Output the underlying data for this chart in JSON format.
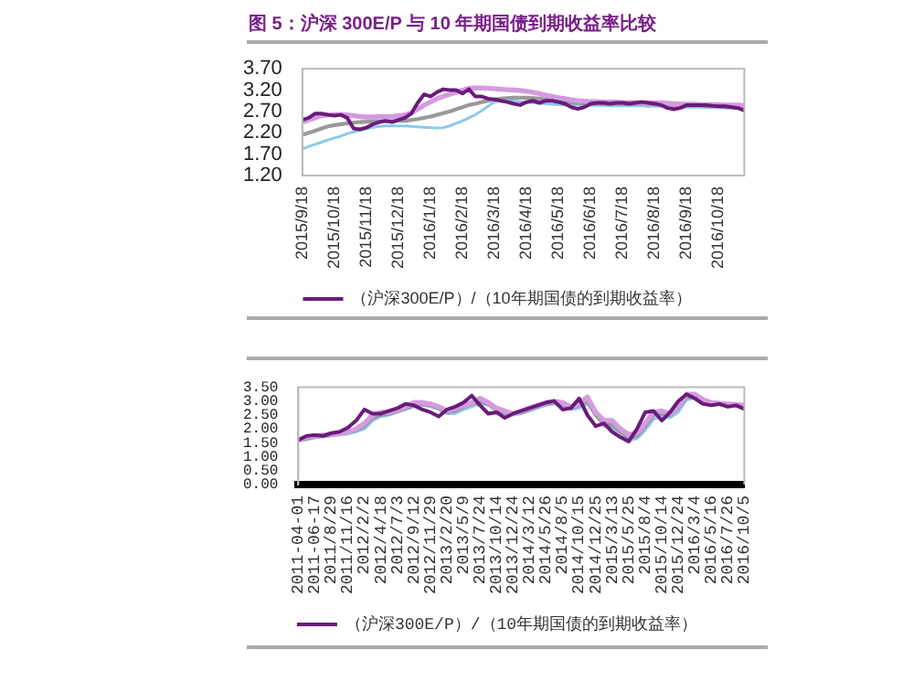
{
  "chart_data": [
    {
      "type": "line",
      "title": "图 5：沪深 300E/P 与 10 年期国债到期收益率比较",
      "categories": [
        "2015/9/18",
        null,
        null,
        null,
        null,
        "2015/10/18",
        null,
        null,
        null,
        null,
        "2015/11/18",
        null,
        null,
        null,
        null,
        "2015/12/18",
        null,
        null,
        null,
        null,
        "2016/1/18",
        null,
        null,
        null,
        null,
        "2016/2/18",
        null,
        null,
        null,
        null,
        "2016/3/18",
        null,
        null,
        null,
        null,
        "2016/4/18",
        null,
        null,
        null,
        null,
        "2016/5/18",
        null,
        null,
        null,
        null,
        "2016/6/18",
        null,
        null,
        null,
        null,
        "2016/7/18",
        null,
        null,
        null,
        null,
        "2016/8/18",
        null,
        null,
        null,
        null,
        "2016/9/18",
        null,
        null,
        null,
        null,
        "2016/10/18",
        null,
        null,
        null,
        null
      ],
      "ylim": [
        1.2,
        3.7
      ],
      "yticks": [
        {
          "value": 1.2,
          "label": "1.20"
        },
        {
          "value": 1.7,
          "label": "1.70"
        },
        {
          "value": 2.2,
          "label": "2.20"
        },
        {
          "value": 2.7,
          "label": "2.70"
        },
        {
          "value": 3.2,
          "label": "3.20"
        },
        {
          "value": 3.7,
          "label": "3.70"
        }
      ],
      "grid": false,
      "legend": "bottom",
      "marker": "none",
      "line_style": "solid",
      "series": [
        {
          "color": "#d49be0",
          "values": [
            2.45,
            2.5,
            2.55,
            2.6,
            2.62,
            2.63,
            2.63,
            2.62,
            2.6,
            2.58,
            2.57,
            2.57,
            2.58,
            2.58,
            2.58,
            2.6,
            2.62,
            2.66,
            2.75,
            2.85,
            2.92,
            3.0,
            3.05,
            3.1,
            3.15,
            3.2,
            3.24,
            3.25,
            3.25,
            3.24,
            3.23,
            3.22,
            3.21,
            3.2,
            3.19,
            3.17,
            3.15,
            3.12,
            3.08,
            3.05,
            3.02,
            3.0,
            2.97,
            2.95,
            2.94,
            2.93,
            2.93,
            2.92,
            2.92,
            2.92,
            2.91,
            2.91,
            2.91,
            2.91,
            2.9,
            2.9,
            2.9,
            2.89,
            2.88,
            2.87,
            2.87,
            2.87,
            2.86,
            2.86,
            2.86,
            2.86,
            2.85,
            2.85,
            2.85,
            2.84
          ]
        },
        {
          "color": "#999999",
          "values": [
            2.15,
            2.2,
            2.25,
            2.3,
            2.35,
            2.38,
            2.4,
            2.42,
            2.44,
            2.45,
            2.46,
            2.47,
            2.47,
            2.47,
            2.47,
            2.48,
            2.48,
            2.5,
            2.52,
            2.55,
            2.58,
            2.62,
            2.66,
            2.7,
            2.75,
            2.8,
            2.85,
            2.88,
            2.92,
            2.95,
            2.98,
            3.0,
            3.01,
            3.02,
            3.02,
            3.02,
            3.01,
            3.0,
            2.98,
            2.96,
            2.94,
            2.92,
            2.91,
            2.9,
            2.89,
            2.89,
            2.88,
            2.88,
            2.88,
            2.88,
            2.88,
            2.88,
            2.88,
            2.88,
            2.88,
            2.87,
            2.86,
            2.86,
            2.85,
            2.85,
            2.84,
            2.84,
            2.84,
            2.83,
            2.83,
            2.83,
            2.82,
            2.82,
            2.82,
            2.82
          ]
        },
        {
          "color": "#8ec8ee",
          "values": [
            1.82,
            1.88,
            1.93,
            1.98,
            2.03,
            2.08,
            2.12,
            2.18,
            2.22,
            2.26,
            2.3,
            2.33,
            2.35,
            2.36,
            2.36,
            2.36,
            2.36,
            2.35,
            2.34,
            2.33,
            2.32,
            2.31,
            2.32,
            2.36,
            2.42,
            2.48,
            2.55,
            2.62,
            2.72,
            2.82,
            2.92,
            2.95,
            2.96,
            2.95,
            2.93,
            2.91,
            2.9,
            2.89,
            2.88,
            2.87,
            2.86,
            2.85,
            2.85,
            2.85,
            2.84,
            2.84,
            2.84,
            2.84,
            2.83,
            2.83,
            2.83,
            2.83,
            2.83,
            2.83,
            2.82,
            2.82,
            2.82,
            2.81,
            2.81,
            2.8,
            2.8,
            2.8,
            2.8,
            2.79,
            2.79,
            2.79,
            2.78,
            2.78,
            2.78,
            2.78
          ]
        },
        {
          "name": "（沪深300E/P）/（10年期国债的到期收益率）",
          "color": "#6a1b7a",
          "values": [
            2.5,
            2.55,
            2.65,
            2.65,
            2.62,
            2.6,
            2.62,
            2.55,
            2.3,
            2.28,
            2.32,
            2.4,
            2.45,
            2.48,
            2.45,
            2.5,
            2.55,
            2.65,
            2.9,
            3.1,
            3.05,
            3.15,
            3.22,
            3.2,
            3.2,
            3.12,
            3.22,
            3.05,
            3.05,
            3.0,
            2.98,
            2.95,
            2.92,
            2.88,
            2.85,
            2.92,
            2.95,
            2.9,
            2.95,
            2.95,
            2.92,
            2.88,
            2.8,
            2.76,
            2.8,
            2.88,
            2.9,
            2.9,
            2.88,
            2.9,
            2.9,
            2.88,
            2.9,
            2.92,
            2.9,
            2.88,
            2.85,
            2.78,
            2.75,
            2.78,
            2.85,
            2.85,
            2.85,
            2.85,
            2.83,
            2.82,
            2.82,
            2.8,
            2.78,
            2.72
          ]
        }
      ]
    },
    {
      "type": "line",
      "categories": [
        "2011-04-01",
        null,
        "2011-06-17",
        null,
        "2011/8/29",
        null,
        "2011/11/16",
        null,
        "2012/2/2",
        null,
        "2012/4/18",
        null,
        "2012/7/3",
        null,
        "2012/9/12",
        null,
        "2012/11/29",
        null,
        "2013/2/20",
        null,
        "2013/5/9",
        null,
        "2013/7/24",
        null,
        "2013/10/14",
        null,
        "2013/12/24",
        null,
        "2014/3/12",
        null,
        "2014/5/26",
        null,
        "2014/8/5",
        null,
        "2014/10/15",
        null,
        "2014/12/25",
        null,
        "2015/3/13",
        null,
        "2015/5/25",
        null,
        "2015/8/4",
        null,
        "2015/10/14",
        null,
        "2015/12/24",
        null,
        "2016/3/4",
        null,
        "2016/5/16",
        null,
        "2016/7/26",
        null,
        "2016/10/5"
      ],
      "ylim": [
        0,
        3.5
      ],
      "yticks": [
        {
          "value": 0,
          "label": "0.00"
        },
        {
          "value": 0.5,
          "label": "0.50"
        },
        {
          "value": 1,
          "label": "1.00"
        },
        {
          "value": 1.5,
          "label": "1.50"
        },
        {
          "value": 2,
          "label": "2.00"
        },
        {
          "value": 2.5,
          "label": "2.50"
        },
        {
          "value": 3,
          "label": "3.00"
        },
        {
          "value": 3.5,
          "label": "3.50"
        }
      ],
      "grid": false,
      "legend": "bottom",
      "marker": "none",
      "line_style": "solid",
      "series": [
        {
          "color": "#d49be0",
          "values": [
            1.6,
            1.7,
            1.75,
            1.78,
            1.8,
            1.85,
            1.9,
            2.0,
            2.2,
            2.5,
            2.6,
            2.6,
            2.7,
            2.8,
            2.95,
            2.95,
            2.9,
            2.8,
            2.65,
            2.75,
            2.85,
            2.95,
            3.1,
            2.95,
            2.75,
            2.65,
            2.55,
            2.65,
            2.75,
            2.85,
            2.95,
            3.0,
            2.95,
            2.8,
            2.9,
            3.15,
            2.6,
            2.3,
            2.3,
            2.0,
            1.8,
            1.85,
            2.2,
            2.6,
            2.65,
            2.55,
            2.8,
            3.25,
            3.25,
            3.05,
            2.95,
            2.92,
            2.9,
            2.88,
            2.85
          ]
        },
        {
          "color": "#999999",
          "values": [
            1.6,
            1.65,
            1.72,
            1.75,
            1.78,
            1.82,
            1.88,
            1.95,
            2.1,
            2.4,
            2.5,
            2.55,
            2.65,
            2.75,
            2.85,
            2.9,
            2.85,
            2.75,
            2.6,
            2.65,
            2.8,
            2.9,
            3.0,
            2.9,
            2.7,
            2.6,
            2.55,
            2.6,
            2.7,
            2.8,
            2.9,
            2.95,
            2.9,
            2.75,
            2.85,
            3.0,
            2.5,
            2.2,
            2.15,
            1.9,
            1.7,
            1.75,
            2.1,
            2.5,
            2.55,
            2.5,
            2.75,
            3.15,
            3.15,
            3.0,
            2.92,
            2.9,
            2.88,
            2.85,
            2.82
          ]
        },
        {
          "color": "#8ec8ee",
          "values": [
            1.58,
            1.62,
            1.68,
            1.72,
            1.75,
            1.78,
            1.82,
            1.9,
            2.0,
            2.3,
            2.45,
            2.5,
            2.6,
            2.7,
            2.8,
            2.85,
            2.8,
            2.7,
            2.55,
            2.55,
            2.7,
            2.8,
            2.9,
            2.85,
            2.65,
            2.55,
            2.5,
            2.55,
            2.65,
            2.75,
            2.85,
            2.9,
            2.85,
            2.7,
            2.75,
            2.9,
            2.5,
            2.1,
            2.05,
            1.85,
            1.6,
            1.65,
            1.95,
            2.35,
            2.45,
            2.4,
            2.6,
            3.05,
            3.1,
            2.95,
            2.88,
            2.86,
            2.84,
            2.82,
            2.8
          ]
        },
        {
          "name": "（沪深300E/P）/（10年期国债的到期收益率）",
          "color": "#6a1b7a",
          "values": [
            1.6,
            1.75,
            1.78,
            1.75,
            1.85,
            1.9,
            2.05,
            2.3,
            2.7,
            2.55,
            2.55,
            2.65,
            2.75,
            2.9,
            2.85,
            2.7,
            2.6,
            2.45,
            2.7,
            2.8,
            2.95,
            3.2,
            2.85,
            2.55,
            2.6,
            2.4,
            2.55,
            2.65,
            2.75,
            2.85,
            2.95,
            3.0,
            2.7,
            2.75,
            3.1,
            2.5,
            2.1,
            2.2,
            1.9,
            1.7,
            1.55,
            2.0,
            2.6,
            2.65,
            2.3,
            2.6,
            3.0,
            3.25,
            3.1,
            2.9,
            2.85,
            2.9,
            2.8,
            2.85,
            2.72
          ]
        }
      ]
    }
  ]
}
